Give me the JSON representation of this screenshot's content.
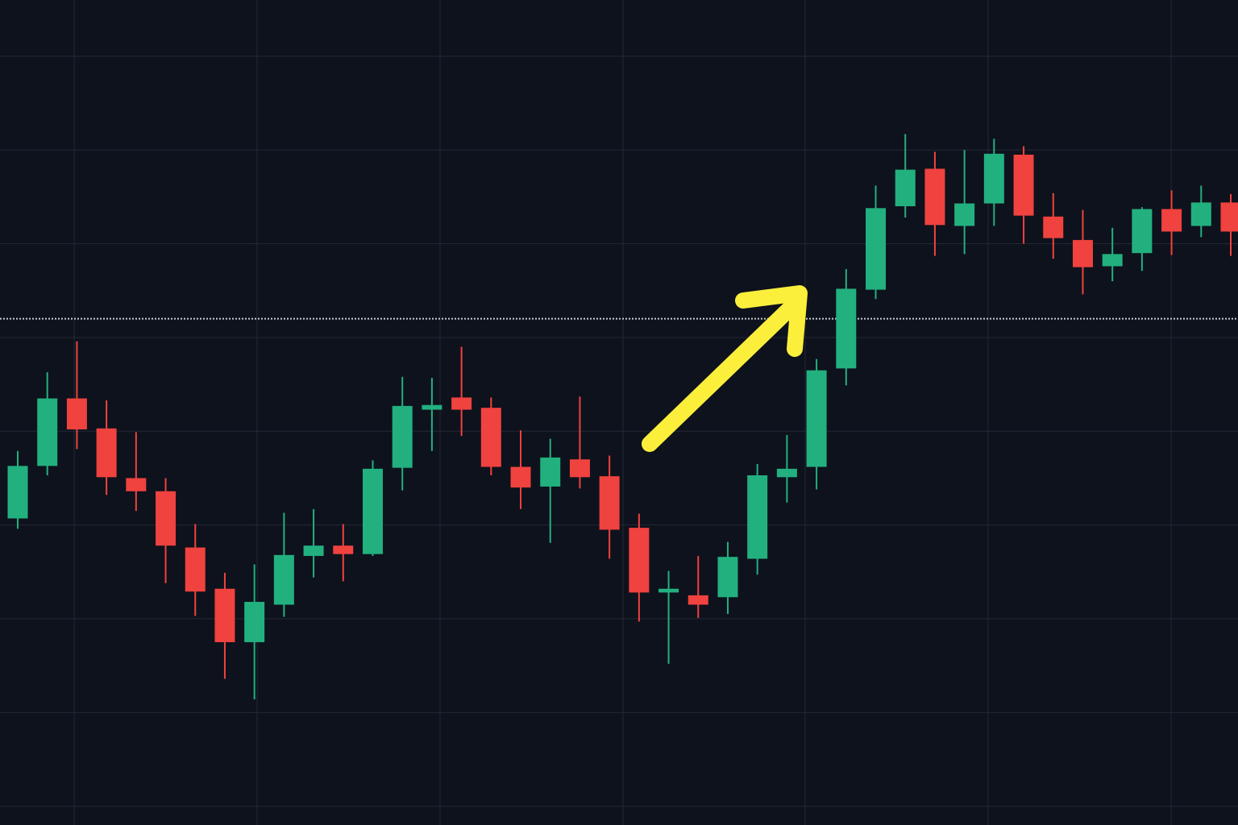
{
  "chart_data": {
    "type": "candlestick",
    "open": [
      40.7,
      46.3,
      53.5,
      50.3,
      45.0,
      43.6,
      37.6,
      33.2,
      27.5,
      31.5,
      36.7,
      37.8,
      36.9,
      46.1,
      52.3,
      53.6,
      52.5,
      46.2,
      44.1,
      47.0,
      45.2,
      39.7,
      32.8,
      32.5,
      32.3,
      36.4,
      45.1,
      46.2,
      56.7,
      65.1,
      74.0,
      78.0,
      71.9,
      74.3,
      79.5,
      72.9,
      70.4,
      67.6,
      69.0,
      73.7,
      71.9,
      74.4
    ],
    "high": [
      47.9,
      56.3,
      59.6,
      53.3,
      49.9,
      45.0,
      40.1,
      34.9,
      35.8,
      41.3,
      41.7,
      40.1,
      46.9,
      55.8,
      55.7,
      59.0,
      53.6,
      50.1,
      49.2,
      53.7,
      47.4,
      41.2,
      35.1,
      36.7,
      38.2,
      46.5,
      49.6,
      57.7,
      67.3,
      76.2,
      81.7,
      79.8,
      80.0,
      81.2,
      80.4,
      75.4,
      73.6,
      71.7,
      73.9,
      75.7,
      76.2,
      75.3
    ],
    "low": [
      39.6,
      45.3,
      48.1,
      43.2,
      41.5,
      33.8,
      30.3,
      23.6,
      21.4,
      30.2,
      34.4,
      34.0,
      36.7,
      43.7,
      47.9,
      49.5,
      45.3,
      41.7,
      38.1,
      43.9,
      36.4,
      29.7,
      25.2,
      30.1,
      30.5,
      34.7,
      42.4,
      43.8,
      54.9,
      64.1,
      72.8,
      68.7,
      68.9,
      71.9,
      70.0,
      68.4,
      64.6,
      66.0,
      67.1,
      68.8,
      70.7,
      68.7
    ],
    "close": [
      46.3,
      53.5,
      50.2,
      45.1,
      43.6,
      37.8,
      32.9,
      27.5,
      31.8,
      36.8,
      37.8,
      36.9,
      46.0,
      52.7,
      52.8,
      52.3,
      46.2,
      44.0,
      47.2,
      45.1,
      39.5,
      32.8,
      33.2,
      31.5,
      36.6,
      45.3,
      46.0,
      56.5,
      65.2,
      73.8,
      77.9,
      72.0,
      74.3,
      79.6,
      73.0,
      70.6,
      67.5,
      68.9,
      73.7,
      71.3,
      74.4,
      71.3
    ],
    "up_color": "#22b07f",
    "down_color": "#f0423f",
    "ylim": [
      8,
      96
    ],
    "yticks": [
      10,
      20,
      30,
      40,
      50,
      60,
      70,
      80,
      90
    ],
    "grid": true,
    "reference_line": 62
  }
}
